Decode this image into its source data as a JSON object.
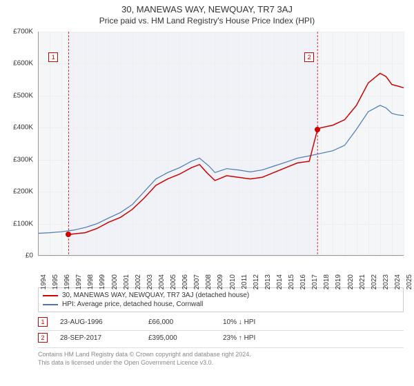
{
  "title": "30, MANEWAS WAY, NEWQUAY, TR7 3AJ",
  "subtitle": "Price paid vs. HM Land Registry's House Price Index (HPI)",
  "chart": {
    "type": "line",
    "background_color": "#f5f6f8",
    "grid_color": "#eceef0",
    "axis_color": "#999999",
    "text_color": "#333333",
    "ylim": [
      0,
      700000
    ],
    "ytick_step": 100000,
    "ytick_labels": [
      "£0",
      "£100K",
      "£200K",
      "£300K",
      "£400K",
      "£500K",
      "£600K",
      "£700K"
    ],
    "x_years": [
      1994,
      1995,
      1996,
      1997,
      1998,
      1999,
      2000,
      2001,
      2002,
      2003,
      2004,
      2005,
      2006,
      2007,
      2008,
      2009,
      2010,
      2011,
      2012,
      2013,
      2014,
      2015,
      2016,
      2017,
      2018,
      2019,
      2020,
      2021,
      2022,
      2023,
      2024,
      2025
    ],
    "highlight_band": {
      "from_year": 1996.6,
      "to_year": 2017.7,
      "color": "#f0f2f7"
    },
    "series": [
      {
        "name": "red",
        "label": "30, MANEWAS WAY, NEWQUAY, TR7 3AJ (detached house)",
        "color": "#cc0000",
        "line_width": 1.5,
        "points": [
          [
            1996.6,
            66000
          ],
          [
            1997,
            68000
          ],
          [
            1998,
            72000
          ],
          [
            1999,
            85000
          ],
          [
            2000,
            105000
          ],
          [
            2001,
            120000
          ],
          [
            2002,
            145000
          ],
          [
            2003,
            180000
          ],
          [
            2004,
            220000
          ],
          [
            2005,
            240000
          ],
          [
            2006,
            255000
          ],
          [
            2007,
            275000
          ],
          [
            2007.7,
            285000
          ],
          [
            2008.3,
            260000
          ],
          [
            2009,
            235000
          ],
          [
            2010,
            250000
          ],
          [
            2011,
            245000
          ],
          [
            2012,
            240000
          ],
          [
            2013,
            245000
          ],
          [
            2014,
            260000
          ],
          [
            2015,
            275000
          ],
          [
            2016,
            290000
          ],
          [
            2017,
            295000
          ],
          [
            2017.7,
            395000
          ],
          [
            2018,
            400000
          ],
          [
            2019,
            408000
          ],
          [
            2020,
            425000
          ],
          [
            2021,
            470000
          ],
          [
            2022,
            540000
          ],
          [
            2023,
            570000
          ],
          [
            2023.5,
            560000
          ],
          [
            2024,
            535000
          ],
          [
            2024.5,
            530000
          ],
          [
            2025,
            525000
          ]
        ]
      },
      {
        "name": "blue",
        "label": "HPI: Average price, detached house, Cornwall",
        "color": "#4a78b5",
        "line_width": 1.2,
        "points": [
          [
            1994,
            70000
          ],
          [
            1995,
            72000
          ],
          [
            1996,
            75000
          ],
          [
            1997,
            80000
          ],
          [
            1998,
            88000
          ],
          [
            1999,
            100000
          ],
          [
            2000,
            118000
          ],
          [
            2001,
            135000
          ],
          [
            2002,
            160000
          ],
          [
            2003,
            200000
          ],
          [
            2004,
            240000
          ],
          [
            2005,
            260000
          ],
          [
            2006,
            275000
          ],
          [
            2007,
            295000
          ],
          [
            2007.7,
            305000
          ],
          [
            2008.5,
            280000
          ],
          [
            2009,
            260000
          ],
          [
            2010,
            272000
          ],
          [
            2011,
            268000
          ],
          [
            2012,
            262000
          ],
          [
            2013,
            268000
          ],
          [
            2014,
            280000
          ],
          [
            2015,
            292000
          ],
          [
            2016,
            305000
          ],
          [
            2017,
            312000
          ],
          [
            2018,
            320000
          ],
          [
            2019,
            328000
          ],
          [
            2020,
            345000
          ],
          [
            2021,
            395000
          ],
          [
            2022,
            450000
          ],
          [
            2023,
            470000
          ],
          [
            2023.5,
            462000
          ],
          [
            2024,
            445000
          ],
          [
            2024.5,
            440000
          ],
          [
            2025,
            438000
          ]
        ]
      }
    ],
    "markers": [
      {
        "id": 1,
        "year": 1996.6,
        "value": 66000,
        "dot_color": "#cc0000",
        "box_color": "#cc0000",
        "box_year": 1995.3,
        "box_value": 620000
      },
      {
        "id": 2,
        "year": 2017.7,
        "value": 395000,
        "dot_color": "#cc0000",
        "box_color": "#cc0000",
        "box_year": 2017.0,
        "box_value": 620000
      }
    ]
  },
  "legend": {
    "border_color": "#cccccc",
    "items": [
      {
        "color": "#cc0000",
        "label": "30, MANEWAS WAY, NEWQUAY, TR7 3AJ (detached house)"
      },
      {
        "color": "#4a78b5",
        "label": "HPI: Average price, detached house, Cornwall"
      }
    ]
  },
  "transactions": [
    {
      "id": 1,
      "box_color": "#cc0000",
      "date": "23-AUG-1996",
      "price": "£66,000",
      "delta": "10% ↓ HPI"
    },
    {
      "id": 2,
      "box_color": "#cc0000",
      "date": "28-SEP-2017",
      "price": "£395,000",
      "delta": "23% ↑ HPI"
    }
  ],
  "footer": {
    "line1": "Contains HM Land Registry data © Crown copyright and database right 2024.",
    "line2": "This data is licensed under the Open Government Licence v3.0."
  }
}
